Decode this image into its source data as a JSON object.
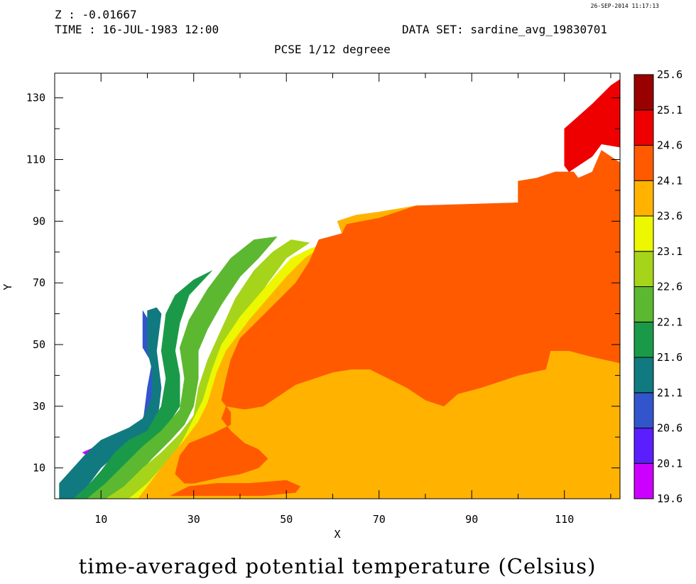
{
  "header": {
    "timestamp": "26-SEP-2014 11:17:13",
    "z_label": "Z : -0.01667",
    "time_label": "TIME : 16-JUL-1983 12:00",
    "dataset_label": "DATA SET: sardine_avg_19830701",
    "subtitle": "PCSE 1/12 degreee"
  },
  "bottom_title": "time-averaged potential temperature (Celsius)",
  "chart_data": {
    "type": "heatmap",
    "title": "time-averaged potential temperature (Celsius)",
    "xlabel": "X",
    "ylabel": "Y",
    "xlim": [
      0,
      122
    ],
    "ylim": [
      0,
      138
    ],
    "xticks": [
      10,
      30,
      50,
      70,
      90,
      110
    ],
    "yticks": [
      10,
      30,
      50,
      70,
      90,
      110,
      130
    ],
    "xtick_labels": [
      "10",
      "30",
      "50",
      "70",
      "90",
      "110"
    ],
    "ytick_labels": [
      "10",
      "30",
      "50",
      "70",
      "90",
      "110",
      "130"
    ],
    "colorbar": {
      "labels": [
        "19.6",
        "20.1",
        "20.6",
        "21.1",
        "21.6",
        "22.1",
        "22.6",
        "23.1",
        "23.6",
        "24.1",
        "24.6",
        "25.1",
        "25.6"
      ],
      "colors": [
        "#cc00ff",
        "#5a1eff",
        "#3355cc",
        "#117a80",
        "#1a9a48",
        "#5cb830",
        "#a6d41a",
        "#ecf700",
        "#ffb300",
        "#ff5a00",
        "#ee0000",
        "#990000"
      ]
    },
    "regions": [
      {
        "level_index": 0,
        "value_range": [
          19.6,
          20.1
        ],
        "polygon": [
          [
            6,
            15
          ],
          [
            9,
            17
          ],
          [
            10,
            18
          ],
          [
            7,
            14
          ]
        ]
      },
      {
        "level_index": 1,
        "value_range": [
          20.1,
          20.6
        ],
        "polygon": [
          [
            1,
            3
          ],
          [
            3,
            7
          ],
          [
            5,
            10
          ],
          [
            8,
            14
          ],
          [
            11,
            19
          ],
          [
            12,
            18
          ],
          [
            9,
            12
          ],
          [
            6,
            7
          ],
          [
            4,
            3
          ]
        ]
      },
      {
        "level_index": 2,
        "value_range": [
          20.6,
          21.1
        ],
        "polygon": [
          [
            19,
            61
          ],
          [
            19,
            49
          ],
          [
            21,
            44
          ],
          [
            20,
            36
          ],
          [
            19,
            24
          ],
          [
            22,
            23
          ],
          [
            22,
            41
          ],
          [
            21,
            56
          ]
        ]
      },
      {
        "level_index": 3,
        "value_range": [
          21.1,
          21.6
        ],
        "polygon": [
          [
            1,
            0
          ],
          [
            1,
            5
          ],
          [
            4,
            10
          ],
          [
            7,
            15
          ],
          [
            10,
            19
          ],
          [
            13,
            21
          ],
          [
            16,
            23
          ],
          [
            19,
            26
          ],
          [
            21,
            33
          ],
          [
            21,
            42
          ],
          [
            20,
            48
          ],
          [
            20,
            61
          ],
          [
            22,
            62
          ],
          [
            23,
            60
          ],
          [
            22,
            48
          ],
          [
            23,
            36
          ],
          [
            22,
            23
          ],
          [
            17,
            18
          ],
          [
            13,
            14
          ],
          [
            10,
            10
          ],
          [
            8,
            6
          ],
          [
            6,
            2
          ],
          [
            5,
            0
          ]
        ]
      },
      {
        "level_index": 4,
        "value_range": [
          21.6,
          22.1
        ],
        "polygon": [
          [
            4,
            0
          ],
          [
            7,
            4
          ],
          [
            10,
            9
          ],
          [
            13,
            15
          ],
          [
            16,
            19
          ],
          [
            20,
            22
          ],
          [
            23,
            30
          ],
          [
            24,
            39
          ],
          [
            23,
            48
          ],
          [
            24,
            60
          ],
          [
            26,
            66
          ],
          [
            30,
            71
          ],
          [
            34,
            74
          ],
          [
            29,
            66
          ],
          [
            27,
            57
          ],
          [
            26,
            48
          ],
          [
            27,
            40
          ],
          [
            27,
            30
          ],
          [
            24,
            23
          ],
          [
            21,
            18
          ],
          [
            17,
            13
          ],
          [
            14,
            9
          ],
          [
            11,
            4
          ],
          [
            9,
            0
          ]
        ]
      },
      {
        "level_index": 5,
        "value_range": [
          22.1,
          22.6
        ],
        "polygon": [
          [
            7,
            0
          ],
          [
            11,
            5
          ],
          [
            15,
            11
          ],
          [
            19,
            17
          ],
          [
            23,
            22
          ],
          [
            27,
            29
          ],
          [
            28,
            39
          ],
          [
            27,
            49
          ],
          [
            29,
            58
          ],
          [
            33,
            68
          ],
          [
            38,
            78
          ],
          [
            43,
            84
          ],
          [
            48,
            85
          ],
          [
            44,
            78
          ],
          [
            40,
            72
          ],
          [
            36,
            63
          ],
          [
            33,
            55
          ],
          [
            31,
            48
          ],
          [
            31,
            39
          ],
          [
            30,
            30
          ],
          [
            28,
            24
          ],
          [
            25,
            19
          ],
          [
            21,
            13
          ],
          [
            18,
            8
          ],
          [
            15,
            3
          ],
          [
            13,
            0
          ]
        ]
      },
      {
        "level_index": 6,
        "value_range": [
          22.6,
          23.1
        ],
        "polygon": [
          [
            11,
            0
          ],
          [
            15,
            4
          ],
          [
            19,
            10
          ],
          [
            23,
            15
          ],
          [
            27,
            21
          ],
          [
            30,
            27
          ],
          [
            31,
            36
          ],
          [
            33,
            45
          ],
          [
            36,
            55
          ],
          [
            39,
            65
          ],
          [
            43,
            74
          ],
          [
            47,
            80
          ],
          [
            51,
            84
          ],
          [
            55,
            83
          ],
          [
            50,
            78
          ],
          [
            46,
            70
          ],
          [
            42,
            61
          ],
          [
            38,
            52
          ],
          [
            36,
            44
          ],
          [
            34,
            35
          ],
          [
            32,
            27
          ],
          [
            29,
            20
          ],
          [
            26,
            14
          ],
          [
            22,
            8
          ],
          [
            19,
            3
          ],
          [
            17,
            0
          ]
        ]
      },
      {
        "level_index": 7,
        "value_range": [
          23.1,
          23.6
        ],
        "polygon": [
          [
            16,
            0
          ],
          [
            20,
            5
          ],
          [
            23,
            10
          ],
          [
            26,
            15
          ],
          [
            28,
            20
          ],
          [
            30,
            26
          ],
          [
            32,
            32
          ],
          [
            34,
            42
          ],
          [
            36,
            50
          ],
          [
            40,
            59
          ],
          [
            44,
            66
          ],
          [
            48,
            73
          ],
          [
            51,
            78
          ],
          [
            55,
            81
          ],
          [
            59,
            83
          ],
          [
            55,
            75
          ],
          [
            50,
            67
          ],
          [
            46,
            58
          ],
          [
            43,
            50
          ],
          [
            39,
            42
          ],
          [
            37,
            34
          ],
          [
            35,
            26
          ],
          [
            32,
            18
          ],
          [
            28,
            10
          ],
          [
            24,
            4
          ],
          [
            21,
            0
          ]
        ]
      },
      {
        "level_index": 8,
        "value_range": [
          23.6,
          24.1
        ],
        "polygon": [
          [
            18,
            0
          ],
          [
            24,
            12
          ],
          [
            28,
            19
          ],
          [
            31,
            25
          ],
          [
            33,
            31
          ],
          [
            35,
            41
          ],
          [
            37,
            48
          ],
          [
            42,
            58
          ],
          [
            46,
            65
          ],
          [
            50,
            72
          ],
          [
            54,
            78
          ],
          [
            58,
            82
          ],
          [
            62,
            86
          ],
          [
            61,
            90
          ],
          [
            65,
            92
          ],
          [
            70,
            93
          ],
          [
            74,
            94
          ],
          [
            78,
            95
          ],
          [
            122,
            95
          ],
          [
            122,
            0
          ]
        ]
      },
      {
        "level_index": 9,
        "value_range": [
          24.1,
          24.6
        ],
        "polygon": [
          [
            57,
            84
          ],
          [
            62,
            86
          ],
          [
            63,
            89
          ],
          [
            70,
            91
          ],
          [
            78,
            95
          ],
          [
            100,
            96
          ],
          [
            100,
            103
          ],
          [
            104,
            104
          ],
          [
            108,
            106
          ],
          [
            112,
            106
          ],
          [
            113,
            104
          ],
          [
            116,
            106
          ],
          [
            118,
            113
          ],
          [
            122,
            109
          ],
          [
            122,
            44
          ],
          [
            116,
            46
          ],
          [
            111,
            48
          ],
          [
            107,
            48
          ],
          [
            106,
            42
          ],
          [
            103,
            41
          ],
          [
            100,
            40
          ],
          [
            96,
            38
          ],
          [
            92,
            36
          ],
          [
            87,
            34
          ],
          [
            84,
            30
          ],
          [
            80,
            32
          ],
          [
            76,
            36
          ],
          [
            72,
            39
          ],
          [
            68,
            42
          ],
          [
            64,
            42
          ],
          [
            60,
            41
          ],
          [
            56,
            39
          ],
          [
            52,
            37
          ],
          [
            48,
            33
          ],
          [
            45,
            30
          ],
          [
            41,
            29
          ],
          [
            37,
            30
          ],
          [
            36,
            26
          ],
          [
            38,
            22
          ],
          [
            41,
            18
          ],
          [
            44,
            16
          ],
          [
            46,
            13
          ],
          [
            44,
            10
          ],
          [
            40,
            8
          ],
          [
            36,
            7
          ],
          [
            33,
            6
          ],
          [
            30,
            5
          ],
          [
            28,
            5
          ],
          [
            26,
            8
          ],
          [
            27,
            14
          ],
          [
            29,
            18
          ],
          [
            34,
            21
          ],
          [
            38,
            24
          ],
          [
            38,
            28
          ],
          [
            36,
            32
          ],
          [
            37,
            39
          ],
          [
            38,
            45
          ],
          [
            40,
            52
          ],
          [
            44,
            58
          ],
          [
            48,
            64
          ],
          [
            52,
            70
          ],
          [
            55,
            77
          ]
        ]
      },
      {
        "level_index": 10,
        "value_range": [
          24.6,
          25.1
        ],
        "polygon": [
          [
            110,
            108
          ],
          [
            110,
            120
          ],
          [
            113,
            124
          ],
          [
            116,
            128
          ],
          [
            118,
            131
          ],
          [
            120,
            134
          ],
          [
            122,
            136
          ],
          [
            122,
            114
          ],
          [
            118,
            115
          ],
          [
            116,
            111
          ],
          [
            113,
            108
          ],
          [
            111,
            106
          ]
        ]
      },
      {
        "level_index": 9,
        "value_range": [
          24.1,
          24.6
        ],
        "polygon": [
          [
            25,
            1
          ],
          [
            29,
            4
          ],
          [
            35,
            5
          ],
          [
            42,
            5
          ],
          [
            50,
            6
          ],
          [
            53,
            4
          ],
          [
            52,
            2
          ],
          [
            45,
            1
          ],
          [
            35,
            1
          ],
          [
            28,
            1
          ]
        ]
      }
    ]
  }
}
